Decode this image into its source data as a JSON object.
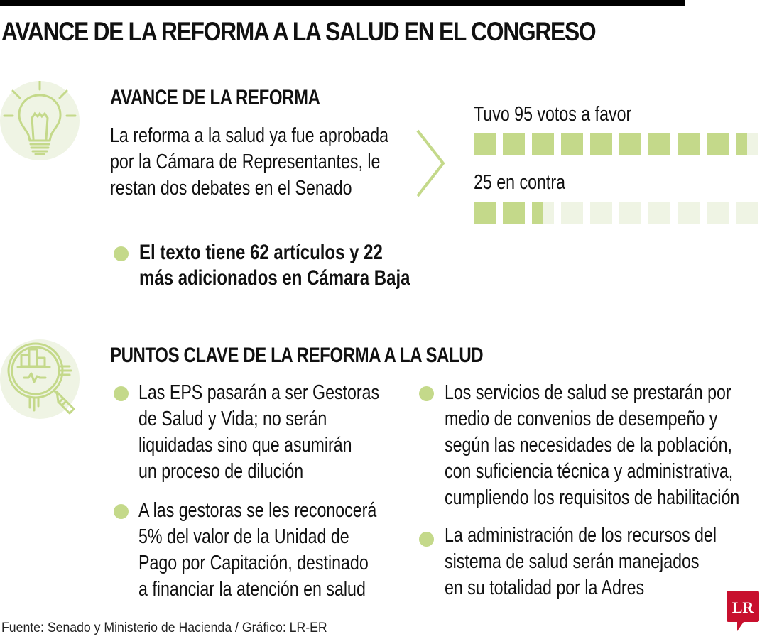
{
  "title": "AVANCE DE LA REFORMA A LA SALUD EN EL CONGRESO",
  "section1": {
    "icon": "lightbulb-icon",
    "heading": "AVANCE DE LA REFORMA",
    "paragraph": [
      "La reforma a la salud ya fue aprobada",
      "por la Cámara de Representantes, le",
      "restan dos debates en el Senado"
    ],
    "highlight": [
      "El texto tiene 62 artículos y 22",
      "más adicionados en Cámara Baja"
    ]
  },
  "votes": {
    "favor_label": "Tuvo 95 votos a favor",
    "contra_label": "25 en contra",
    "favor": 95,
    "contra": 25,
    "squares": 10,
    "votes_per_square": 10,
    "fill_color": "#c4d98a",
    "empty_color": "#eff4e4"
  },
  "section2": {
    "icon": "magnifier-chart-icon",
    "heading": "PUNTOS CLAVE DE LA REFORMA A LA SALUD",
    "points_left": [
      [
        "Las EPS pasarán a ser Gestoras",
        "de Salud y Vida; no serán",
        "liquidadas sino que asumirán",
        "un proceso de dilución"
      ],
      [
        "A las gestoras se les reconocerá",
        "5% del valor de la Unidad de",
        "Pago por Capitación, destinado",
        "a financiar la atención en salud"
      ]
    ],
    "points_right": [
      [
        "Los servicios de salud se prestarán por",
        "medio de convenios de desempeño y",
        "según las necesidades de la población,",
        "con suficiencia técnica y administrativa,",
        "cumpliendo los requisitos de habilitación"
      ],
      [
        "La administración de los recursos del",
        "sistema de salud serán manejados",
        "en su totalidad por la Adres"
      ]
    ]
  },
  "footer": "Fuente: Senado y Ministerio de Hacienda / Gráfico: LR-ER",
  "logo": "LR",
  "colors": {
    "accent_green": "#c4d98a",
    "light_green": "#eff4e4",
    "logo_red": "#c8102e"
  }
}
